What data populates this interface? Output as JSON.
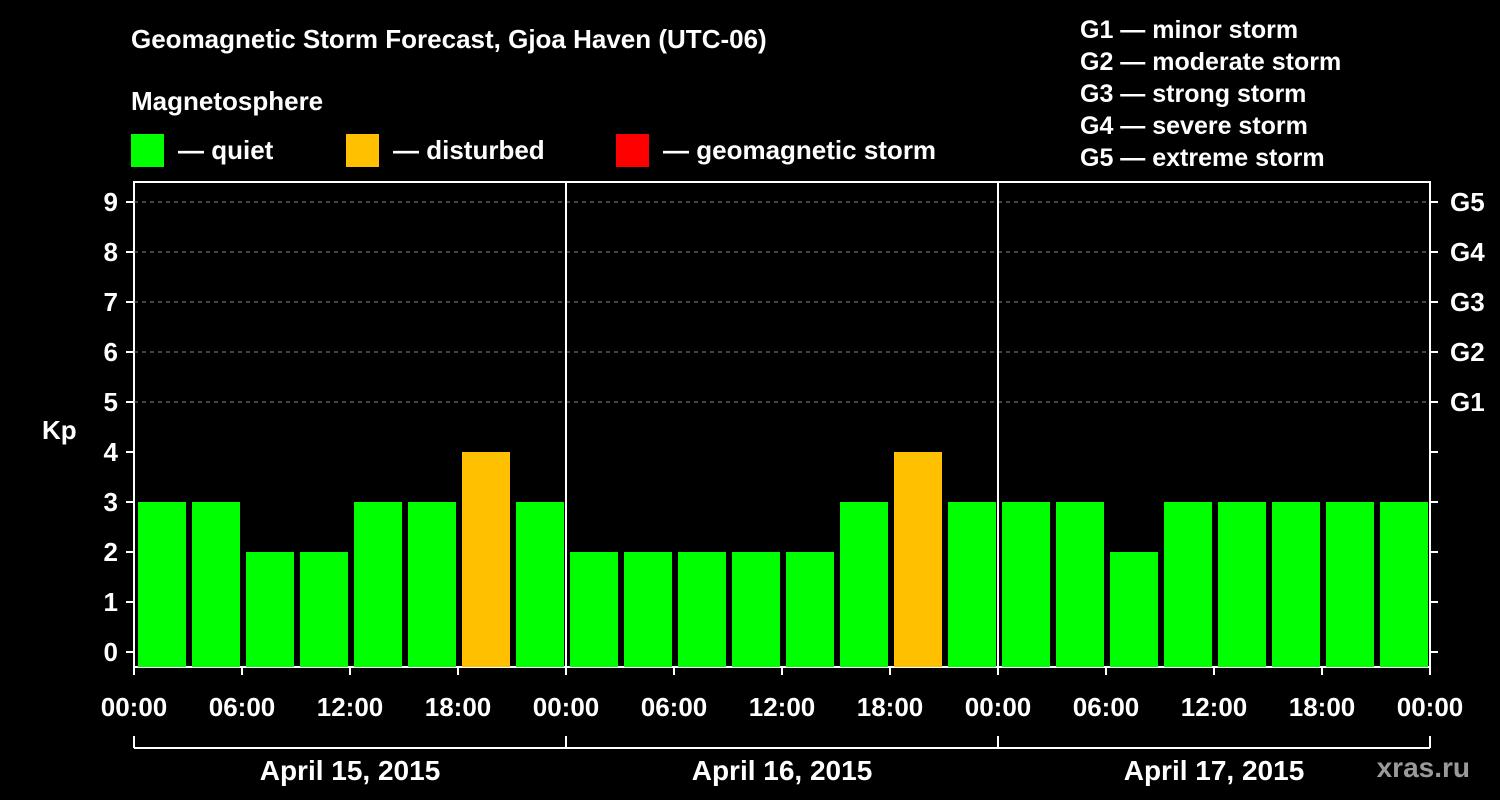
{
  "title": "Geomagnetic Storm Forecast, Gjoa Haven (UTC-06)",
  "subtitle": "Magnetosphere",
  "legend": [
    {
      "label": "— quiet",
      "color": "#00ff00"
    },
    {
      "label": "— disturbed",
      "color": "#ffc000"
    },
    {
      "label": "— geomagnetic storm",
      "color": "#ff0000"
    }
  ],
  "storm_scale": [
    "G1 — minor storm",
    "G2 — moderate storm",
    "G3 — strong storm",
    "G4 — severe storm",
    "G5 — extreme storm"
  ],
  "watermark": "xras.ru",
  "chart_data": {
    "type": "bar",
    "ylabel": "Kp",
    "ylim": [
      0,
      9
    ],
    "yticks": [
      "0",
      "1",
      "2",
      "3",
      "4",
      "5",
      "6",
      "7",
      "8",
      "9"
    ],
    "right_ticks": [
      {
        "kp": 5,
        "label": "G1"
      },
      {
        "kp": 6,
        "label": "G2"
      },
      {
        "kp": 7,
        "label": "G3"
      },
      {
        "kp": 8,
        "label": "G4"
      },
      {
        "kp": 9,
        "label": "G5"
      }
    ],
    "grid": "horizontal dashed at 5-9",
    "xtick_labels": [
      "00:00",
      "06:00",
      "12:00",
      "18:00",
      "00:00",
      "06:00",
      "12:00",
      "18:00",
      "00:00",
      "06:00",
      "12:00",
      "18:00",
      "00:00"
    ],
    "days": [
      "April 15, 2015",
      "April 16, 2015",
      "April 17, 2015"
    ],
    "values": [
      3,
      3,
      2,
      2,
      3,
      3,
      4,
      3,
      2,
      2,
      2,
      2,
      2,
      3,
      4,
      3,
      3,
      3,
      2,
      3,
      3,
      3,
      3,
      3
    ],
    "colors": {
      "quiet": "#00ff00",
      "disturbed": "#ffc000",
      "storm": "#ff0000"
    }
  }
}
